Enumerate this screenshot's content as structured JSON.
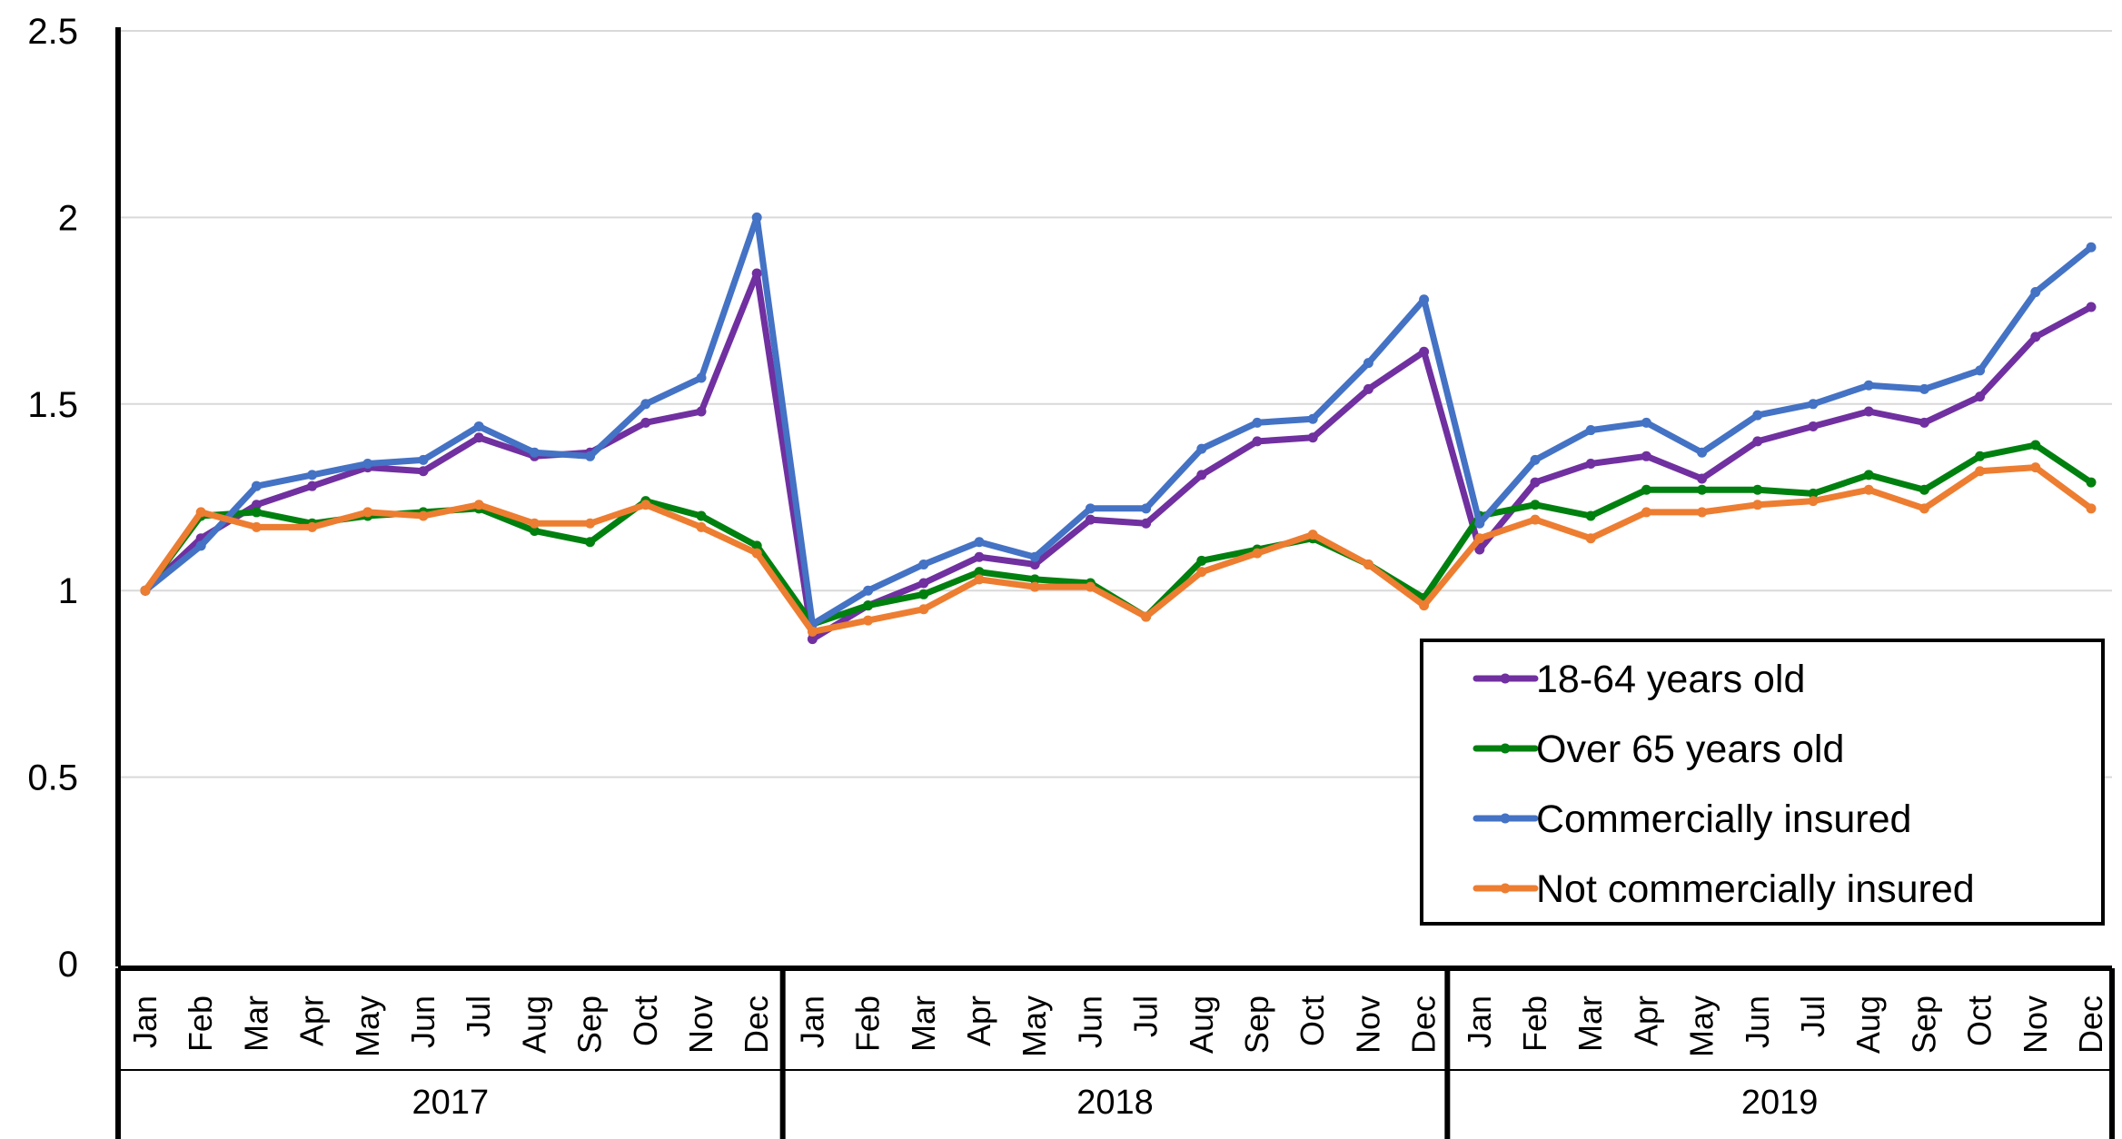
{
  "chart_data": {
    "type": "line",
    "title": "",
    "xlabel": "",
    "ylabel": "",
    "ylim": [
      0,
      2.5
    ],
    "yticks": [
      "0",
      "0.5",
      "1",
      "1.5",
      "2",
      "2.5"
    ],
    "grid": "horizontal",
    "legend_position": "bottom-right",
    "years": [
      "2017",
      "2018",
      "2019"
    ],
    "months": [
      "Jan",
      "Feb",
      "Mar",
      "Apr",
      "May",
      "Jun",
      "Jul",
      "Aug",
      "Sep",
      "Oct",
      "Nov",
      "Dec"
    ],
    "series": [
      {
        "name": "18-64 years old",
        "color": "#7030A0",
        "values": [
          1.0,
          1.14,
          1.23,
          1.28,
          1.33,
          1.32,
          1.41,
          1.36,
          1.37,
          1.45,
          1.48,
          1.85,
          0.87,
          0.96,
          1.02,
          1.09,
          1.07,
          1.19,
          1.18,
          1.31,
          1.4,
          1.41,
          1.54,
          1.64,
          1.11,
          1.29,
          1.34,
          1.36,
          1.3,
          1.4,
          1.44,
          1.48,
          1.45,
          1.52,
          1.68,
          1.76
        ]
      },
      {
        "name": "Over 65 years old",
        "color": "#00800F",
        "values": [
          1.0,
          1.2,
          1.21,
          1.18,
          1.2,
          1.21,
          1.22,
          1.16,
          1.13,
          1.24,
          1.2,
          1.12,
          0.91,
          0.96,
          0.99,
          1.05,
          1.03,
          1.02,
          0.93,
          1.08,
          1.11,
          1.14,
          1.07,
          0.98,
          1.2,
          1.23,
          1.2,
          1.27,
          1.27,
          1.27,
          1.26,
          1.31,
          1.27,
          1.36,
          1.39,
          1.29
        ]
      },
      {
        "name": "Commercially insured",
        "color": "#4472C4",
        "values": [
          1.0,
          1.12,
          1.28,
          1.31,
          1.34,
          1.35,
          1.44,
          1.37,
          1.36,
          1.5,
          1.57,
          2.0,
          0.91,
          1.0,
          1.07,
          1.13,
          1.09,
          1.22,
          1.22,
          1.38,
          1.45,
          1.46,
          1.61,
          1.78,
          1.18,
          1.35,
          1.43,
          1.45,
          1.37,
          1.47,
          1.5,
          1.55,
          1.54,
          1.59,
          1.8,
          1.92
        ]
      },
      {
        "name": "Not commercially insured",
        "color": "#ED7D31",
        "values": [
          1.0,
          1.21,
          1.17,
          1.17,
          1.21,
          1.2,
          1.23,
          1.18,
          1.18,
          1.23,
          1.17,
          1.1,
          0.89,
          0.92,
          0.95,
          1.03,
          1.01,
          1.01,
          0.93,
          1.05,
          1.1,
          1.15,
          1.07,
          0.96,
          1.14,
          1.19,
          1.14,
          1.21,
          1.21,
          1.23,
          1.24,
          1.27,
          1.22,
          1.32,
          1.33,
          1.22
        ]
      }
    ]
  }
}
